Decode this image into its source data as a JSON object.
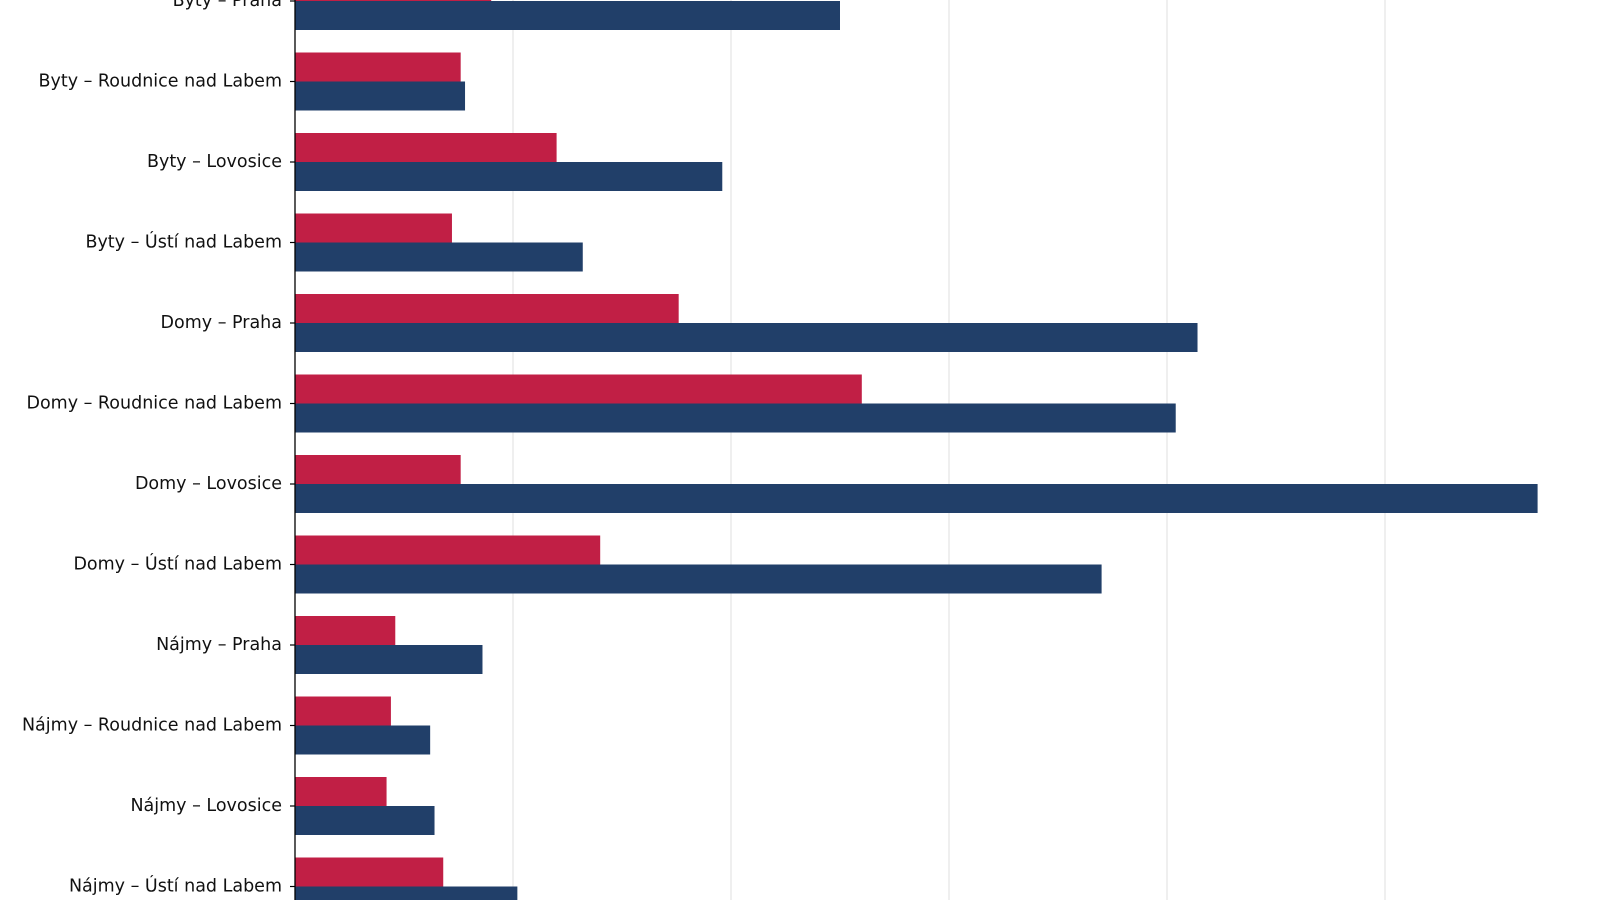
{
  "chart_data": {
    "type": "bar",
    "orientation": "horizontal",
    "categories": [
      "Byty – Praha",
      "Byty – Roudnice nad Labem",
      "Byty – Lovosice",
      "Byty – Ústí nad Labem",
      "Domy – Praha",
      "Domy – Roudnice nad Labem",
      "Domy – Lovosice",
      "Domy – Ústí nad Labem",
      "Nájmy – Praha",
      "Nájmy – Roudnice nad Labem",
      "Nájmy – Lovosice",
      "Nájmy – Ústí nad Labem"
    ],
    "series": [
      {
        "color": "#c11f45",
        "values": [
          0.9,
          0.76,
          1.2,
          0.72,
          1.76,
          2.6,
          0.76,
          1.4,
          0.46,
          0.44,
          0.42,
          0.68
        ]
      },
      {
        "color": "#213f69",
        "values": [
          2.5,
          0.78,
          1.96,
          1.32,
          4.14,
          4.04,
          5.7,
          3.7,
          0.86,
          0.62,
          0.64,
          1.02
        ]
      }
    ],
    "xlim": [
      0,
      6
    ],
    "grid": "vertical",
    "legend": "none"
  }
}
